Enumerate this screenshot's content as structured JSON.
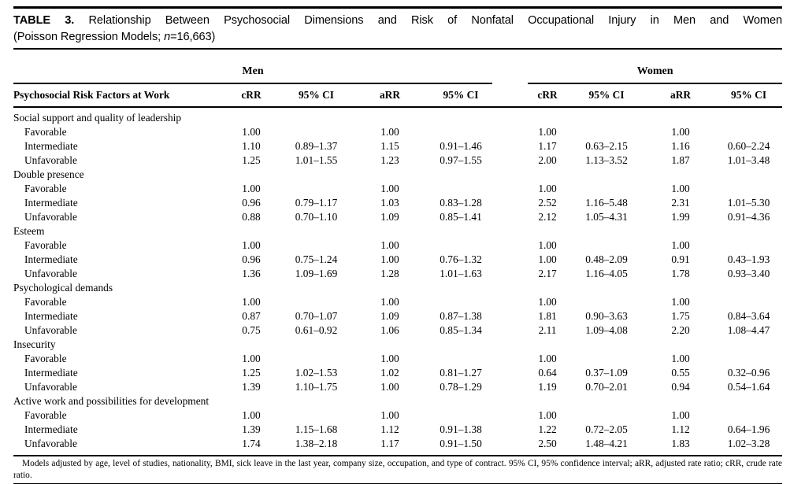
{
  "title": {
    "label": "TABLE 3.",
    "line1_rest": "Relationship Between Psychosocial Dimensions and Risk of Nonfatal Occupational Injury in Men and Women",
    "line2_pre": "(Poisson Regression Models; ",
    "line2_n": "n",
    "line2_post": "=16,663)"
  },
  "table": {
    "group_headers": [
      "Men",
      "Women"
    ],
    "col_header": "Psychosocial Risk Factors at Work",
    "sub_headers": [
      "cRR",
      "95% CI",
      "aRR",
      "95% CI"
    ],
    "sections": [
      {
        "name": "Social support and quality of leadership",
        "rows": [
          {
            "label": "Favorable",
            "values": [
              "1.00",
              "",
              "1.00",
              "",
              "1.00",
              "",
              "1.00",
              ""
            ]
          },
          {
            "label": "Intermediate",
            "values": [
              "1.10",
              "0.89–1.37",
              "1.15",
              "0.91–1.46",
              "1.17",
              "0.63–2.15",
              "1.16",
              "0.60–2.24"
            ]
          },
          {
            "label": "Unfavorable",
            "values": [
              "1.25",
              "1.01–1.55",
              "1.23",
              "0.97–1.55",
              "2.00",
              "1.13–3.52",
              "1.87",
              "1.01–3.48"
            ]
          }
        ]
      },
      {
        "name": "Double presence",
        "rows": [
          {
            "label": "Favorable",
            "values": [
              "1.00",
              "",
              "1.00",
              "",
              "1.00",
              "",
              "1.00",
              ""
            ]
          },
          {
            "label": "Intermediate",
            "values": [
              "0.96",
              "0.79–1.17",
              "1.03",
              "0.83–1.28",
              "2.52",
              "1.16–5.48",
              "2.31",
              "1.01–5.30"
            ]
          },
          {
            "label": "Unfavorable",
            "values": [
              "0.88",
              "0.70–1.10",
              "1.09",
              "0.85–1.41",
              "2.12",
              "1.05–4.31",
              "1.99",
              "0.91–4.36"
            ]
          }
        ]
      },
      {
        "name": "Esteem",
        "rows": [
          {
            "label": "Favorable",
            "values": [
              "1.00",
              "",
              "1.00",
              "",
              "1.00",
              "",
              "1.00",
              ""
            ]
          },
          {
            "label": "Intermediate",
            "values": [
              "0.96",
              "0.75–1.24",
              "1.00",
              "0.76–1.32",
              "1.00",
              "0.48–2.09",
              "0.91",
              "0.43–1.93"
            ]
          },
          {
            "label": "Unfavorable",
            "values": [
              "1.36",
              "1.09–1.69",
              "1.28",
              "1.01–1.63",
              "2.17",
              "1.16–4.05",
              "1.78",
              "0.93–3.40"
            ]
          }
        ]
      },
      {
        "name": "Psychological demands",
        "rows": [
          {
            "label": "Favorable",
            "values": [
              "1.00",
              "",
              "1.00",
              "",
              "1.00",
              "",
              "1.00",
              ""
            ]
          },
          {
            "label": "Intermediate",
            "values": [
              "0.87",
              "0.70–1.07",
              "1.09",
              "0.87–1.38",
              "1.81",
              "0.90–3.63",
              "1.75",
              "0.84–3.64"
            ]
          },
          {
            "label": "Unfavorable",
            "values": [
              "0.75",
              "0.61–0.92",
              "1.06",
              "0.85–1.34",
              "2.11",
              "1.09–4.08",
              "2.20",
              "1.08–4.47"
            ]
          }
        ]
      },
      {
        "name": "Insecurity",
        "rows": [
          {
            "label": "Favorable",
            "values": [
              "1.00",
              "",
              "1.00",
              "",
              "1.00",
              "",
              "1.00",
              ""
            ]
          },
          {
            "label": "Intermediate",
            "values": [
              "1.25",
              "1.02–1.53",
              "1.02",
              "0.81–1.27",
              "0.64",
              "0.37–1.09",
              "0.55",
              "0.32–0.96"
            ]
          },
          {
            "label": "Unfavorable",
            "values": [
              "1.39",
              "1.10–1.75",
              "1.00",
              "0.78–1.29",
              "1.19",
              "0.70–2.01",
              "0.94",
              "0.54–1.64"
            ]
          }
        ]
      },
      {
        "name": "Active work and possibilities for development",
        "rows": [
          {
            "label": "Favorable",
            "values": [
              "1.00",
              "",
              "1.00",
              "",
              "1.00",
              "",
              "1.00",
              ""
            ]
          },
          {
            "label": "Intermediate",
            "values": [
              "1.39",
              "1.15–1.68",
              "1.12",
              "0.91–1.38",
              "1.22",
              "0.72–2.05",
              "1.12",
              "0.64–1.96"
            ]
          },
          {
            "label": "Unfavorable",
            "values": [
              "1.74",
              "1.38–2.18",
              "1.17",
              "0.91–1.50",
              "2.50",
              "1.48–4.21",
              "1.83",
              "1.02–3.28"
            ]
          }
        ]
      }
    ]
  },
  "footnote": "Models adjusted by age, level of studies, nationality, BMI, sick leave in the last year, company size, occupation, and type of contract. 95% CI, 95% confidence interval; aRR, adjusted rate ratio; cRR, crude rate ratio."
}
